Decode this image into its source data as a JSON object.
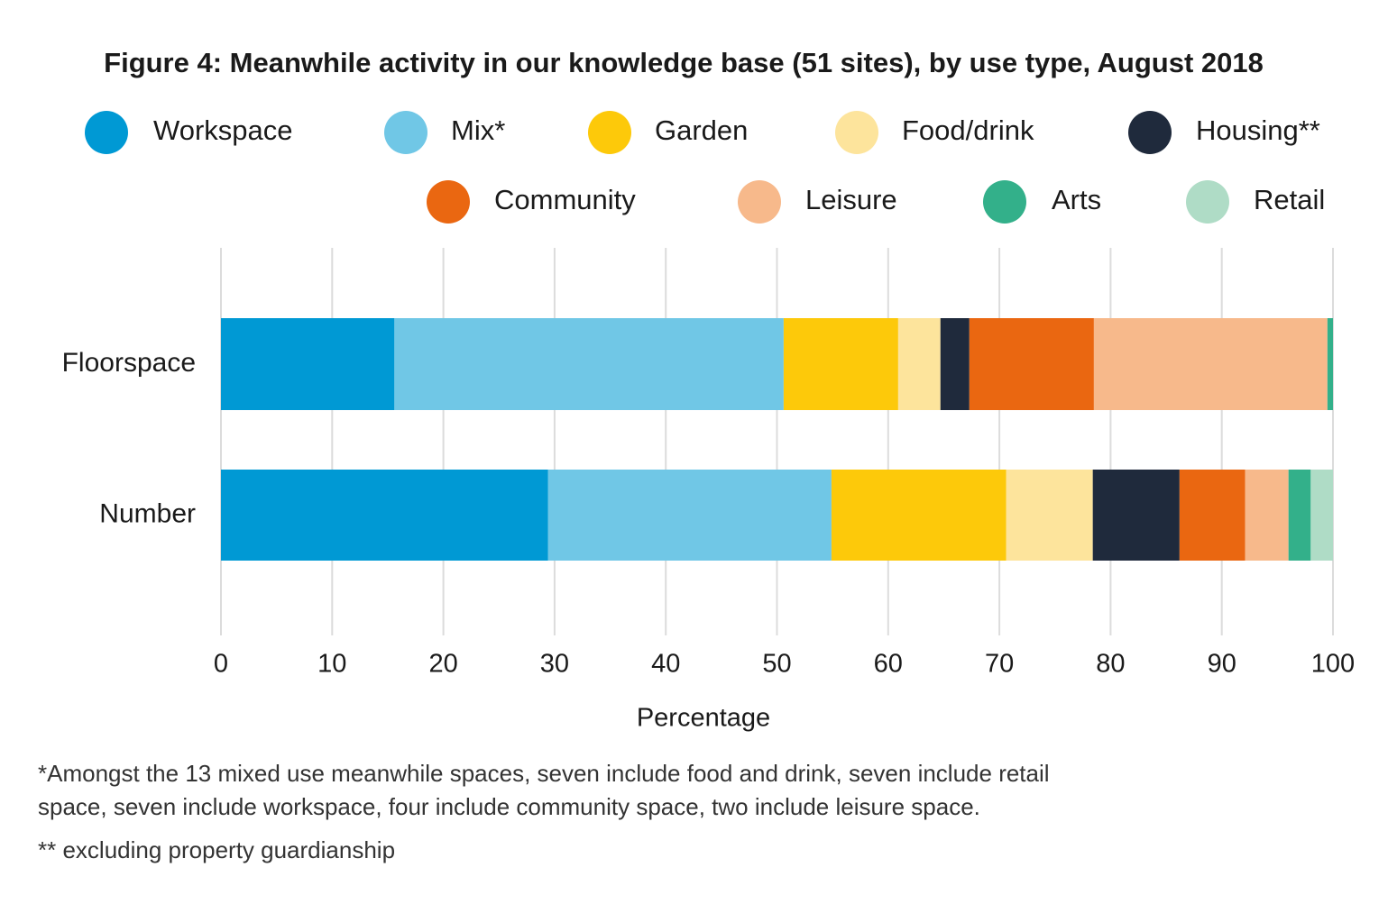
{
  "chart_data": {
    "type": "stacked-bar-horizontal",
    "title": "Figure 4: Meanwhile activity in our knowledge base (51 sites), by use type, August 2018",
    "categories": [
      "Floorspace",
      "Number"
    ],
    "series": [
      {
        "name": "Workspace",
        "color": "#0099d4",
        "values": [
          15.6,
          29.4
        ]
      },
      {
        "name": "Mix*",
        "color": "#70c7e6",
        "values": [
          35.0,
          25.5
        ]
      },
      {
        "name": "Garden",
        "color": "#fdc90a",
        "values": [
          10.3,
          15.7
        ]
      },
      {
        "name": "Food/drink",
        "color": "#fde49c",
        "values": [
          3.8,
          7.8
        ]
      },
      {
        "name": "Housing**",
        "color": "#1f2a3c",
        "values": [
          2.6,
          7.8
        ]
      },
      {
        "name": "Community",
        "color": "#ea6711",
        "values": [
          11.2,
          5.9
        ]
      },
      {
        "name": "Leisure",
        "color": "#f7b98b",
        "values": [
          21.0,
          3.9
        ]
      },
      {
        "name": "Arts",
        "color": "#33b08a",
        "values": [
          0.5,
          2.0
        ]
      },
      {
        "name": "Retail",
        "color": "#afdcc6",
        "values": [
          0,
          2.0
        ]
      }
    ],
    "xlim": [
      0,
      100
    ],
    "xticks": [
      0,
      10,
      20,
      30,
      40,
      50,
      60,
      70,
      80,
      90,
      100
    ],
    "xlabel": "Percentage",
    "grid": true,
    "footnotes": [
      "*Amongst the 13 mixed use meanwhile spaces, seven include food and drink, seven include retail",
      "space, seven include workspace, four include community space, two include leisure space.",
      "** excluding property guardianship"
    ]
  }
}
